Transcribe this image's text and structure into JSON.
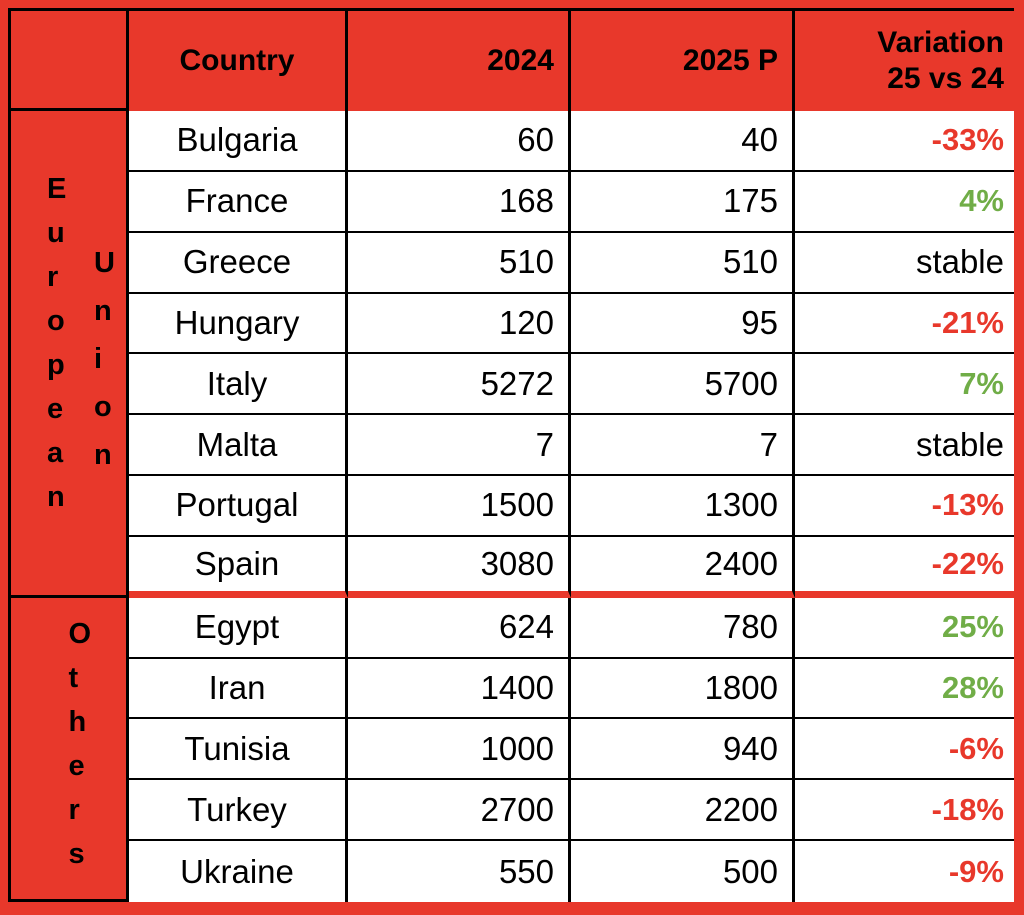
{
  "theme": {
    "background_red": "#E8382B",
    "negative_red": "#E8382B",
    "positive_green": "#70AD47",
    "grid_black": "#000000",
    "cell_white": "#FFFFFF"
  },
  "header": {
    "country": "Country",
    "col_2024": "2024",
    "col_2025": "2025 P",
    "variation_line1": "Variation",
    "variation_line2": "25 vs 24"
  },
  "groups": {
    "eu_word1": "European",
    "eu_word2": "Union",
    "others": "Others"
  },
  "rows": [
    {
      "country": "Bulgaria",
      "v2024": "60",
      "v2025": "40",
      "variation": "-33%",
      "trend": "negative"
    },
    {
      "country": "France",
      "v2024": "168",
      "v2025": "175",
      "variation": "4%",
      "trend": "positive"
    },
    {
      "country": "Greece",
      "v2024": "510",
      "v2025": "510",
      "variation": "stable",
      "trend": "neutral"
    },
    {
      "country": "Hungary",
      "v2024": "120",
      "v2025": "95",
      "variation": "-21%",
      "trend": "negative"
    },
    {
      "country": "Italy",
      "v2024": "5272",
      "v2025": "5700",
      "variation": "7%",
      "trend": "positive"
    },
    {
      "country": "Malta",
      "v2024": "7",
      "v2025": "7",
      "variation": "stable",
      "trend": "neutral"
    },
    {
      "country": "Portugal",
      "v2024": "1500",
      "v2025": "1300",
      "variation": "-13%",
      "trend": "negative"
    },
    {
      "country": "Spain",
      "v2024": "3080",
      "v2025": "2400",
      "variation": "-22%",
      "trend": "negative"
    },
    {
      "country": "Egypt",
      "v2024": "624",
      "v2025": "780",
      "variation": "25%",
      "trend": "positive"
    },
    {
      "country": "Iran",
      "v2024": "1400",
      "v2025": "1800",
      "variation": "28%",
      "trend": "positive"
    },
    {
      "country": "Tunisia",
      "v2024": "1000",
      "v2025": "940",
      "variation": "-6%",
      "trend": "negative"
    },
    {
      "country": "Turkey",
      "v2024": "2700",
      "v2025": "2200",
      "variation": "-18%",
      "trend": "negative"
    },
    {
      "country": "Ukraine",
      "v2024": "550",
      "v2025": "500",
      "variation": "-9%",
      "trend": "negative"
    }
  ],
  "chart_data": {
    "type": "table",
    "columns": [
      "Country",
      "2024",
      "2025 P",
      "Variation 25 vs 24"
    ],
    "groups": [
      {
        "name": "European Union",
        "rows": [
          [
            "Bulgaria",
            60,
            40,
            "-33%"
          ],
          [
            "France",
            168,
            175,
            "4%"
          ],
          [
            "Greece",
            510,
            510,
            "stable"
          ],
          [
            "Hungary",
            120,
            95,
            "-21%"
          ],
          [
            "Italy",
            5272,
            5700,
            "7%"
          ],
          [
            "Malta",
            7,
            7,
            "stable"
          ],
          [
            "Portugal",
            1500,
            1300,
            "-13%"
          ],
          [
            "Spain",
            3080,
            2400,
            "-22%"
          ]
        ]
      },
      {
        "name": "Others",
        "rows": [
          [
            "Egypt",
            624,
            780,
            "25%"
          ],
          [
            "Iran",
            1400,
            1800,
            "28%"
          ],
          [
            "Tunisia",
            1000,
            940,
            "-6%"
          ],
          [
            "Turkey",
            2700,
            2200,
            "-18%"
          ],
          [
            "Ukraine",
            550,
            500,
            "-9%"
          ]
        ]
      }
    ],
    "layout": {
      "negative_color": "#E8382B",
      "positive_color": "#70AD47",
      "header_background": "#E8382B",
      "section_divider": "red thick line between European Union and Others"
    }
  }
}
